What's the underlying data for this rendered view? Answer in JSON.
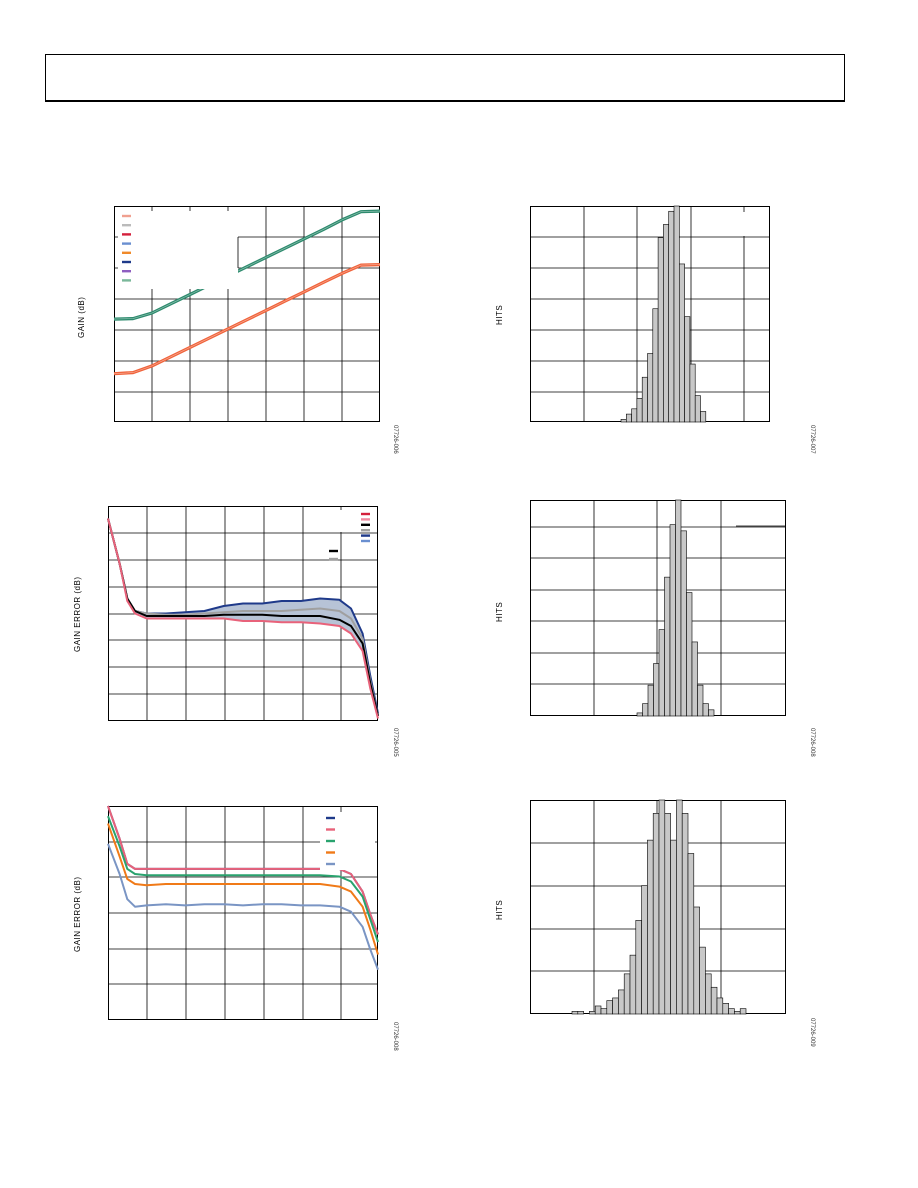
{
  "header": {
    "title": ""
  },
  "colors": {
    "grid": "#000000",
    "bar_fill": "#c8c8c8",
    "green": "#2e8b6e",
    "orange": "#f0643c",
    "navy": "#1f3a8a",
    "pink": "#e8627a",
    "black": "#000000",
    "gray": "#a0a0a0",
    "blue": "#4a70b0",
    "teal": "#29a36e",
    "orange2": "#f07a18",
    "lightblue": "#7a95c4"
  },
  "figures": [
    {
      "id": "fig1",
      "ylabel": "GAIN (dB)",
      "fignum": "07726-006"
    },
    {
      "id": "fig2",
      "ylabel": "HITS",
      "fignum": "07726-007"
    },
    {
      "id": "fig3",
      "ylabel": "GAIN ERROR (dB)",
      "fignum": "07726-005"
    },
    {
      "id": "fig4",
      "ylabel": "HITS",
      "fignum": "07726-008"
    },
    {
      "id": "fig5",
      "ylabel": "GAIN ERROR (dB)",
      "fignum": "07726-008"
    },
    {
      "id": "fig6",
      "ylabel": "HITS",
      "fignum": "07726-009"
    }
  ],
  "chart_data": [
    {
      "type": "line",
      "title": "",
      "xlabel": "",
      "ylabel": "GAIN (dB)",
      "x": [
        0,
        0.5,
        1,
        1.5,
        2,
        2.5,
        3,
        3.5,
        4,
        4.5,
        5,
        5.5,
        6,
        6.5,
        7
      ],
      "series": [
        {
          "color": "#2e8b6e",
          "values": [
            20,
            20.1,
            21.2,
            23.0,
            24.8,
            26.6,
            28.4,
            30.2,
            32.0,
            33.8,
            35.6,
            37.4,
            39.3,
            40.9,
            41.0
          ]
        },
        {
          "color": "#f0643c",
          "values": [
            9.4,
            9.6,
            10.9,
            12.7,
            14.5,
            16.3,
            18.1,
            19.9,
            21.7,
            23.5,
            25.3,
            27.1,
            28.9,
            30.5,
            30.6
          ]
        }
      ],
      "legend_swatches": [
        "#f0a090",
        "#bbbbbb",
        "#d4203c",
        "#6a8fd0",
        "#f08a2a",
        "#1f3a8a",
        "#8e5ec0",
        "#7ab89a"
      ]
    },
    {
      "type": "bar",
      "title": "",
      "xlabel": "",
      "ylabel": "HITS",
      "values": [
        1,
        3,
        5,
        9,
        17,
        26,
        43,
        70,
        75,
        80,
        82,
        60,
        40,
        22,
        10,
        4
      ]
    },
    {
      "type": "line",
      "title": "",
      "xlabel": "",
      "ylabel": "GAIN ERROR (dB)",
      "x": [
        0,
        0.3,
        0.5,
        0.7,
        1,
        1.5,
        2,
        2.5,
        3,
        3.5,
        4,
        4.5,
        5,
        5.5,
        6,
        6.3,
        6.6,
        6.8,
        7
      ],
      "series": [
        {
          "color": "#1f3a8a",
          "values": [
            3.8,
            2.0,
            0.6,
            0.1,
            0.0,
            0.0,
            0.05,
            0.1,
            0.3,
            0.4,
            0.4,
            0.5,
            0.5,
            0.6,
            0.55,
            0.2,
            -0.8,
            -2.5,
            -4.0
          ]
        },
        {
          "color": "#a0a0a0",
          "values": [
            3.8,
            2.0,
            0.6,
            0.1,
            0.0,
            -0.05,
            -0.05,
            0.0,
            0.05,
            0.1,
            0.1,
            0.1,
            0.15,
            0.2,
            0.1,
            -0.2,
            -1.0,
            -2.7,
            -4.1
          ]
        },
        {
          "color": "#000000",
          "values": [
            3.8,
            2.0,
            0.6,
            0.1,
            -0.1,
            -0.1,
            -0.1,
            -0.1,
            -0.05,
            -0.05,
            -0.05,
            -0.1,
            -0.1,
            -0.1,
            -0.25,
            -0.5,
            -1.2,
            -2.8,
            -4.1
          ]
        },
        {
          "color": "#e8627a",
          "values": [
            3.8,
            2.0,
            0.5,
            0.0,
            -0.2,
            -0.2,
            -0.2,
            -0.2,
            -0.2,
            -0.3,
            -0.3,
            -0.35,
            -0.35,
            -0.4,
            -0.5,
            -0.8,
            -1.5,
            -3.0,
            -4.2
          ]
        }
      ],
      "legend_swatches": [
        "#d4203c",
        "#f08aa0",
        "#000000",
        "#a0a0a0",
        "#1f3a8a",
        "#6a8fd0"
      ],
      "legend2_swatches": [
        "#000000",
        "#a0a0a0"
      ]
    },
    {
      "type": "bar",
      "title": "",
      "xlabel": "",
      "ylabel": "HITS",
      "values": [
        1,
        4,
        10,
        17,
        28,
        45,
        62,
        70,
        60,
        40,
        24,
        10,
        4,
        2
      ]
    },
    {
      "type": "line",
      "title": "",
      "xlabel": "",
      "ylabel": "GAIN ERROR (dB)",
      "x": [
        0,
        0.3,
        0.5,
        0.7,
        1,
        1.5,
        2,
        2.5,
        3,
        3.5,
        4,
        4.5,
        5,
        5.5,
        6,
        6.3,
        6.6,
        6.8,
        7
      ],
      "series": [
        {
          "color": "#1f3a8a",
          "values": [
            2.5,
            1.2,
            0.2,
            0.0,
            0.0,
            0.0,
            0.0,
            0.0,
            0.0,
            0.0,
            0.0,
            0.0,
            0.0,
            0.0,
            0.0,
            -0.2,
            -0.9,
            -1.8,
            -2.6
          ]
        },
        {
          "color": "#e8627a",
          "values": [
            2.5,
            1.2,
            0.2,
            0.0,
            0.0,
            0.0,
            0.0,
            0.0,
            0.0,
            0.0,
            0.0,
            0.0,
            0.0,
            0.0,
            0.0,
            -0.2,
            -0.9,
            -1.8,
            -2.6
          ]
        },
        {
          "color": "#29a36e",
          "values": [
            2.1,
            0.9,
            0.0,
            -0.2,
            -0.25,
            -0.25,
            -0.25,
            -0.25,
            -0.25,
            -0.25,
            -0.25,
            -0.25,
            -0.25,
            -0.25,
            -0.3,
            -0.5,
            -1.1,
            -2.0,
            -2.9
          ]
        },
        {
          "color": "#f07a18",
          "values": [
            1.8,
            0.5,
            -0.4,
            -0.6,
            -0.65,
            -0.6,
            -0.6,
            -0.6,
            -0.6,
            -0.6,
            -0.6,
            -0.6,
            -0.6,
            -0.6,
            -0.7,
            -0.9,
            -1.5,
            -2.4,
            -3.4
          ]
        },
        {
          "color": "#7a95c4",
          "values": [
            1.0,
            -0.2,
            -1.2,
            -1.5,
            -1.45,
            -1.4,
            -1.45,
            -1.4,
            -1.4,
            -1.45,
            -1.4,
            -1.4,
            -1.45,
            -1.45,
            -1.5,
            -1.7,
            -2.3,
            -3.2,
            -4.0
          ]
        }
      ],
      "legend_swatches": [
        "#1f3a8a",
        "#e8627a",
        "#29a36e",
        "#f07a18",
        "#7a95c4"
      ]
    },
    {
      "type": "bar",
      "title": "",
      "xlabel": "",
      "ylabel": "HITS",
      "values": [
        1,
        1,
        0,
        1,
        3,
        2,
        5,
        6,
        9,
        15,
        22,
        35,
        48,
        65,
        75,
        80,
        75,
        65,
        80,
        75,
        60,
        40,
        25,
        15,
        10,
        6,
        4,
        2,
        1,
        2
      ]
    }
  ]
}
